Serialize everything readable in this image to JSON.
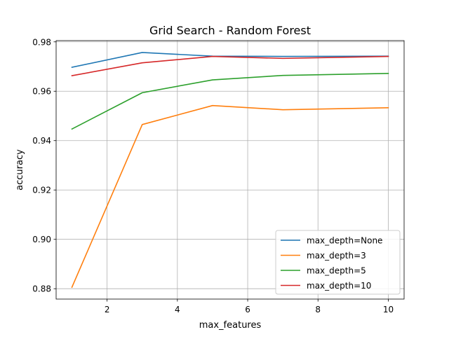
{
  "chart_data": {
    "type": "line",
    "title": "Grid Search - Random Forest",
    "xlabel": "max_features",
    "ylabel": "accuracy",
    "xlim": [
      0.55,
      10.45
    ],
    "ylim": [
      0.8758,
      0.9805
    ],
    "x": [
      1,
      3,
      5,
      7,
      10
    ],
    "x_ticks": [
      2,
      4,
      6,
      8,
      10
    ],
    "y_ticks": [
      0.88,
      0.9,
      0.92,
      0.94,
      0.96,
      0.98
    ],
    "x_tick_labels": [
      "2",
      "4",
      "6",
      "8",
      "10"
    ],
    "y_tick_labels": [
      "0.88",
      "0.90",
      "0.92",
      "0.94",
      "0.96",
      "0.98"
    ],
    "grid": true,
    "legend_position": "lower-right",
    "series": [
      {
        "name": "max_depth=None",
        "color": "#1f77b4",
        "values": [
          0.9697,
          0.9757,
          0.9742,
          0.9741,
          0.9742
        ]
      },
      {
        "name": "max_depth=3",
        "color": "#ff7f0e",
        "values": [
          0.8806,
          0.9465,
          0.9542,
          0.9525,
          0.9533
        ]
      },
      {
        "name": "max_depth=5",
        "color": "#2ca02c",
        "values": [
          0.9447,
          0.9594,
          0.9646,
          0.9664,
          0.9672
        ]
      },
      {
        "name": "max_depth=10",
        "color": "#d62728",
        "values": [
          0.9663,
          0.9715,
          0.9741,
          0.9733,
          0.9741
        ]
      }
    ]
  }
}
